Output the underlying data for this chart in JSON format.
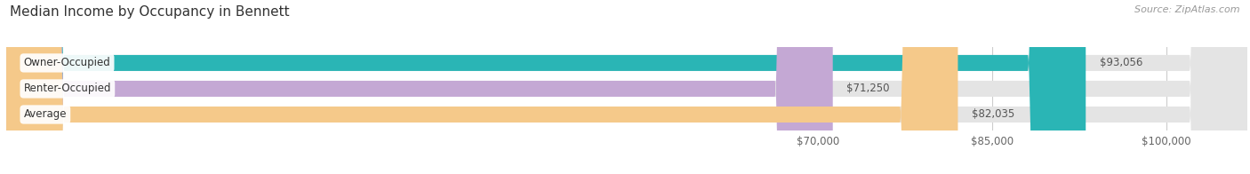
{
  "title": "Median Income by Occupancy in Bennett",
  "source": "Source: ZipAtlas.com",
  "categories": [
    "Owner-Occupied",
    "Renter-Occupied",
    "Average"
  ],
  "values": [
    93056,
    71250,
    82035
  ],
  "bar_colors": [
    "#2ab5b5",
    "#c4a8d4",
    "#f5c98a"
  ],
  "bar_labels": [
    "$93,056",
    "$71,250",
    "$82,035"
  ],
  "bar_bg_color": "#e4e4e4",
  "xlim_min": 0,
  "xlim_max": 107000,
  "xticks": [
    70000,
    85000,
    100000
  ],
  "xtick_labels": [
    "$70,000",
    "$85,000",
    "$100,000"
  ],
  "title_fontsize": 11,
  "source_fontsize": 8,
  "label_fontsize": 8.5,
  "cat_fontsize": 8.5,
  "tick_fontsize": 8.5,
  "bar_height": 0.62,
  "bg_color": "#ffffff",
  "grid_color": "#cccccc",
  "label_inside_threshold": 95000,
  "label_inside_color": "#ffffff",
  "label_outside_color": "#555555"
}
